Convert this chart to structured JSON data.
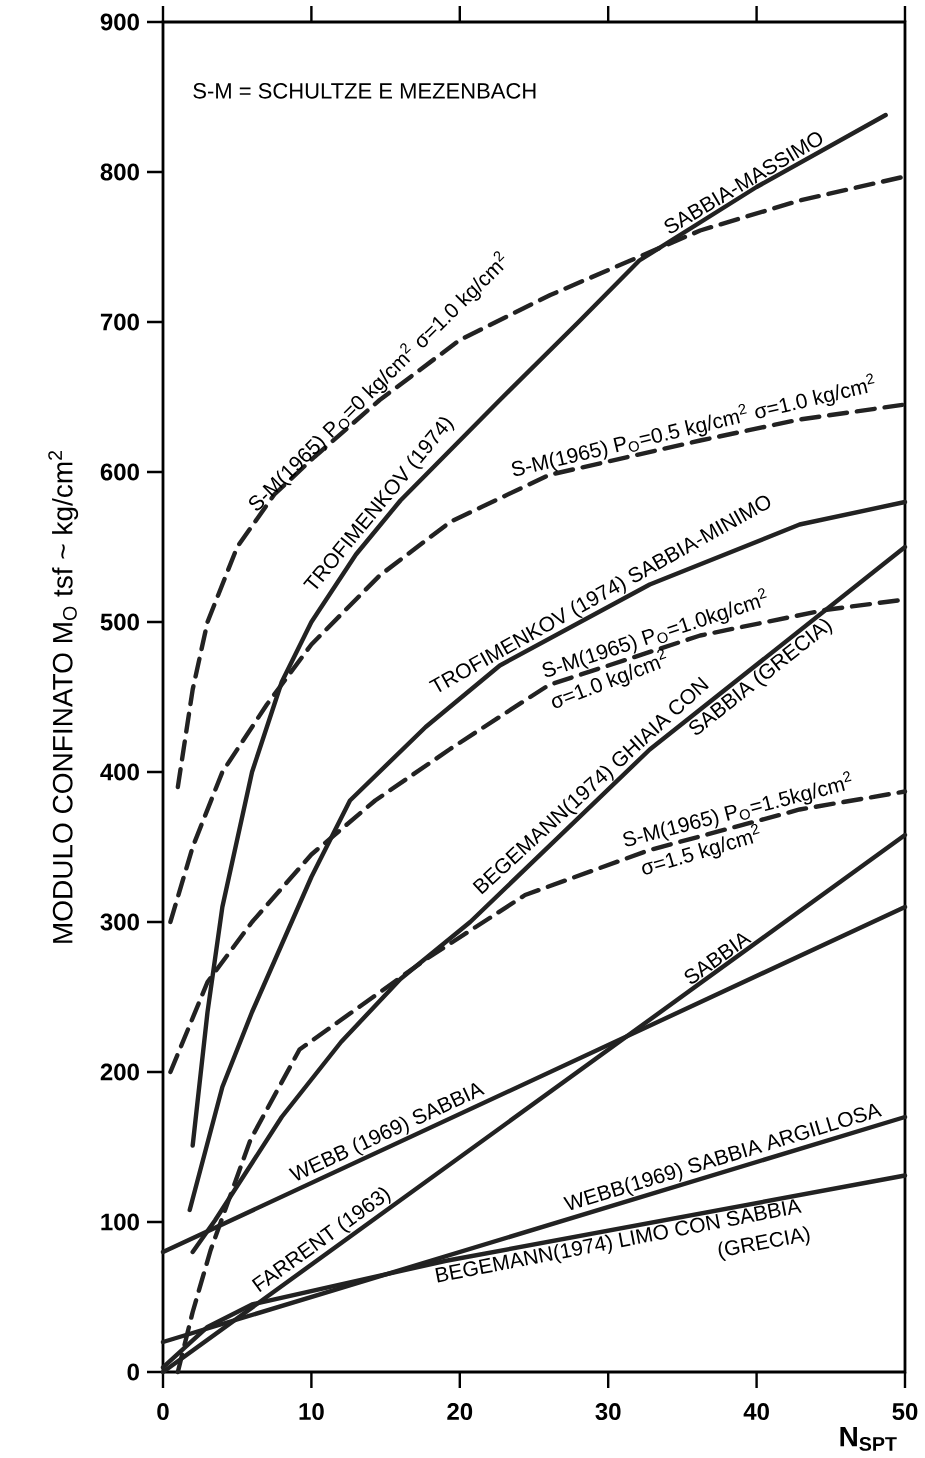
{
  "chart_data": {
    "type": "line",
    "xlabel": "N$_{SPT}$",
    "ylabel": "MODULO CONFINATO M$_{O}$   tsf ~ kg/cm$^{2}$",
    "xlim": [
      0,
      50
    ],
    "ylim": [
      0,
      900
    ],
    "xticks": [
      0,
      10,
      20,
      30,
      40,
      50
    ],
    "yticks": [
      0,
      100,
      200,
      300,
      400,
      500,
      600,
      700,
      800,
      900
    ],
    "marker": "none",
    "series": [
      {
        "name": "S-M(1965) P$_{O}$=0 kg/cm$^{2}$  σ=1.0 kg/cm$^{2}$",
        "color": "#222222",
        "line_style": "dashed",
        "x": [
          1,
          2,
          3,
          5,
          7.5,
          10.2,
          14.6,
          20,
          26.1,
          31.5,
          36.2,
          42.9,
          50
        ],
        "values": [
          390,
          455,
          500,
          550,
          585,
          610,
          648,
          688,
          718,
          741,
          761,
          781,
          797
        ]
      },
      {
        "name": "TROFIMENKOV (1974)",
        "color": "#222222",
        "line_style": "solid",
        "x": [
          2,
          3,
          4,
          6,
          8,
          10,
          13,
          16,
          22.7,
          28,
          32.1,
          40,
          48.7
        ],
        "values": [
          151,
          240,
          310,
          400,
          460,
          500,
          545,
          581,
          648,
          700,
          741,
          790,
          838
        ]
      },
      {
        "name": "S-M(1965) P$_{O}$=0.5 kg/cm$^{2}$  σ=1.0 kg/cm$^{2}$",
        "color": "#222222",
        "line_style": "dashed",
        "x": [
          0.5,
          2,
          4,
          7,
          10,
          14.6,
          19.4,
          26,
          36.2,
          42.9,
          50
        ],
        "values": [
          300,
          350,
          400,
          445,
          485,
          531,
          567,
          598,
          621,
          635,
          645
        ]
      },
      {
        "name": "TROFIMENKOV (1974) SABBIA-MINIMO",
        "color": "#222222",
        "line_style": "solid",
        "x": [
          1.8,
          4,
          6,
          8,
          10,
          12.6,
          17.7,
          22.7,
          32.8,
          42.9,
          50
        ],
        "values": [
          108,
          190,
          240,
          285,
          330,
          381,
          430,
          471,
          525,
          565,
          580
        ]
      },
      {
        "name": "S-M(1965) P$_{O}$=1.0kg/cm$^{2}$",
        "color": "#222222",
        "line_style": "dashed",
        "x": [
          0.5,
          3,
          6,
          10,
          14.3,
          19.3,
          26,
          36.2,
          44.6,
          50
        ],
        "values": [
          200,
          260,
          300,
          345,
          381,
          415,
          458,
          491,
          508,
          515
        ]
      },
      {
        "name": "BEGEMANN(1974) GHIAIA CON",
        "color": "#222222",
        "line_style": "solid",
        "x": [
          2,
          3.5,
          8,
          12,
          16,
          20.7,
          32.8,
          50
        ],
        "values": [
          80,
          101,
          170,
          220,
          262,
          300,
          415,
          550
        ]
      },
      {
        "name": "S-M(1965) P$_{O}$=1.5kg/cm$^{2}$",
        "color": "#222222",
        "line_style": "dashed",
        "x": [
          1,
          2,
          3.2,
          5.9,
          9.2,
          14.3,
          17.7,
          24.4,
          32.8,
          42.9,
          50
        ],
        "values": [
          0,
          40,
          81,
          155,
          215,
          251,
          275,
          318,
          348,
          375,
          387
        ]
      },
      {
        "name": "WEBB (1969) SABBIA",
        "color": "#222222",
        "line_style": "solid",
        "x": [
          0,
          50
        ],
        "values": [
          80,
          310
        ]
      },
      {
        "name": "FARRENT (1963)",
        "color": "#222222",
        "line_style": "solid",
        "x": [
          0,
          50
        ],
        "values": [
          0,
          358
        ]
      },
      {
        "name": "WEBB(1969) SABBIA ARGILLOSA",
        "color": "#222222",
        "line_style": "solid",
        "x": [
          0,
          50
        ],
        "values": [
          20,
          170
        ]
      },
      {
        "name": "BEGEMANN(1974) LIMO CON SABBIA",
        "color": "#222222",
        "line_style": "solid",
        "x": [
          0,
          3,
          6,
          19,
          50
        ],
        "values": [
          3,
          30,
          45,
          74,
          131
        ]
      }
    ],
    "annotations": [
      "S-M = SCHULTZE E MEZENBACH",
      "SABBIA-MASSIMO",
      "σ=1.0 kg/cm$^{2}$",
      "SABBIA (GRECIA)",
      "σ=1.5 kg/cm$^{2}$",
      "SABBIA",
      "(GRECIA)"
    ]
  }
}
